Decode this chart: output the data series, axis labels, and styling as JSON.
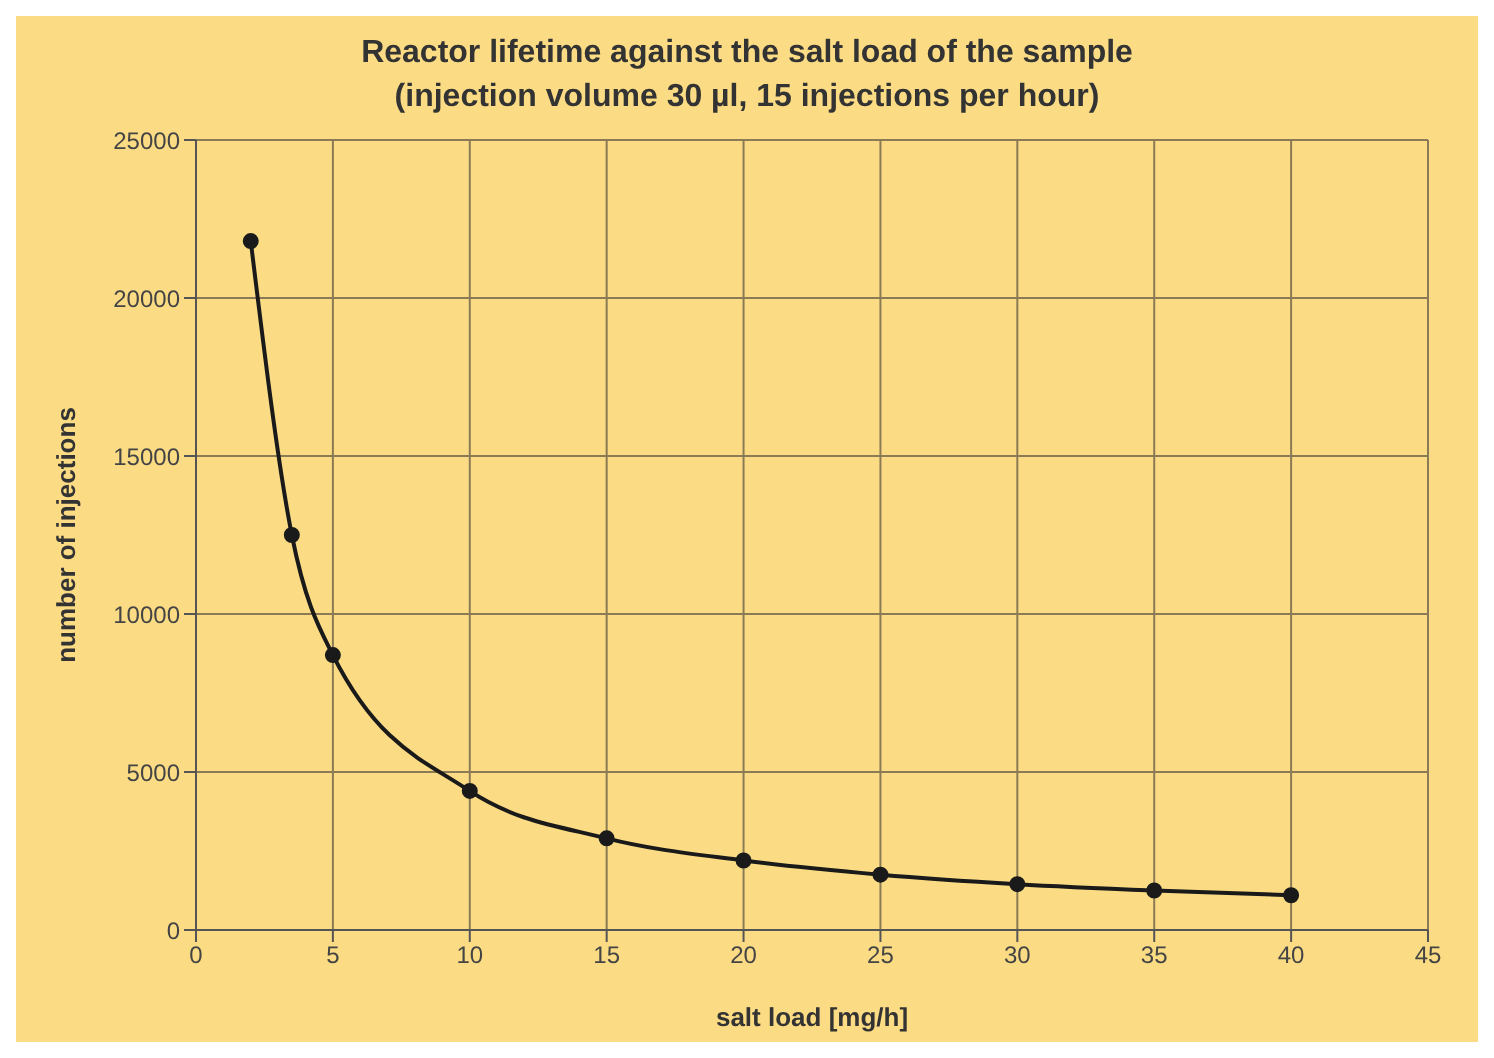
{
  "chart_data": {
    "type": "line",
    "title": "Reactor lifetime against the salt load of the sample",
    "subtitle": "(injection volume 30 µl, 15 injections per hour)",
    "xlabel": "salt load [mg/h]",
    "ylabel": "number of injections",
    "x": [
      2,
      3.5,
      5,
      10,
      15,
      20,
      25,
      30,
      35,
      40
    ],
    "series": [
      {
        "color": "#1a1a1a",
        "values": [
          21800,
          12500,
          8700,
          4400,
          2900,
          2200,
          1750,
          1450,
          1250,
          1100
        ]
      }
    ],
    "xlim": [
      0,
      45
    ],
    "xticks": [
      0,
      5,
      10,
      15,
      20,
      25,
      30,
      35,
      40,
      45
    ],
    "ylim": [
      0,
      25000
    ],
    "yticks": [
      0,
      5000,
      10000,
      15000,
      20000,
      25000
    ],
    "grid": true,
    "marker": "circle",
    "line_style": "solid",
    "legend": false
  }
}
